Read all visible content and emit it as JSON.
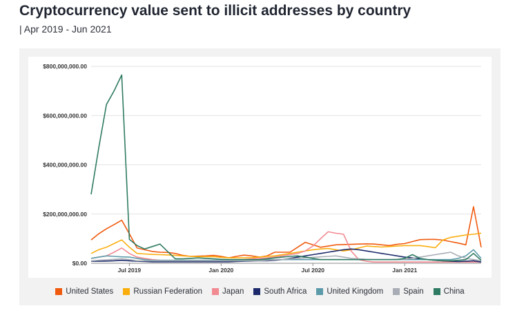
{
  "header": {
    "title": "Cryptocurrency value sent to illicit addresses by country",
    "subtitle": "| Apr 2019 - Jun 2021"
  },
  "chart_data": {
    "type": "line",
    "title": "Cryptocurrency value sent to illicit addresses by country",
    "subtitle": "| Apr 2019 - Jun 2021",
    "xlabel": "",
    "ylabel": "",
    "grid": true,
    "legend_position": "bottom",
    "ylim": [
      0,
      800000000
    ],
    "y_ticks": [
      {
        "value": 0,
        "label": "$0.00"
      },
      {
        "value": 200000000,
        "label": "$200,000,000.00"
      },
      {
        "value": 400000000,
        "label": "$400,000,000.00"
      },
      {
        "value": 600000000,
        "label": "$600,000,000.00"
      },
      {
        "value": 800000000,
        "label": "$800,000,000.00"
      }
    ],
    "x_ticks": [
      {
        "index": 5,
        "label": "Jul 2019"
      },
      {
        "index": 17,
        "label": "Jan 2020"
      },
      {
        "index": 29,
        "label": "Jul 2020"
      },
      {
        "index": 41,
        "label": "Jan 2021"
      }
    ],
    "x_count": 52,
    "series": [
      {
        "name": "United States",
        "color": "#F05A0E",
        "values": [
          95000000,
          120000000,
          140000000,
          157000000,
          175000000,
          120000000,
          62000000,
          55000000,
          48000000,
          45000000,
          44000000,
          40000000,
          32000000,
          28000000,
          29000000,
          30000000,
          32000000,
          28000000,
          22000000,
          28000000,
          33000000,
          30000000,
          25000000,
          30000000,
          45000000,
          45000000,
          45000000,
          65000000,
          85000000,
          75000000,
          65000000,
          70000000,
          75000000,
          76000000,
          77000000,
          78000000,
          79000000,
          78000000,
          75000000,
          72000000,
          77000000,
          80000000,
          88000000,
          96000000,
          97000000,
          97000000,
          94000000,
          88000000,
          82000000,
          75000000,
          230000000,
          65000000
        ]
      },
      {
        "name": "Russian Federation",
        "color": "#F9AE0E",
        "values": [
          40000000,
          55000000,
          65000000,
          80000000,
          95000000,
          65000000,
          40000000,
          38000000,
          36000000,
          35000000,
          34000000,
          32000000,
          30000000,
          28000000,
          27000000,
          27000000,
          27000000,
          24000000,
          22000000,
          22000000,
          22000000,
          23000000,
          25000000,
          28000000,
          30000000,
          35000000,
          40000000,
          45000000,
          50000000,
          55000000,
          58000000,
          60000000,
          55000000,
          50000000,
          55000000,
          62000000,
          70000000,
          68000000,
          66000000,
          68000000,
          70000000,
          72000000,
          72000000,
          72000000,
          68000000,
          63000000,
          95000000,
          105000000,
          110000000,
          115000000,
          118000000,
          122000000
        ]
      },
      {
        "name": "Japan",
        "color": "#F28A92",
        "values": [
          20000000,
          25000000,
          30000000,
          45000000,
          62000000,
          40000000,
          25000000,
          20000000,
          15000000,
          12000000,
          10000000,
          10000000,
          10000000,
          10000000,
          10000000,
          10000000,
          10000000,
          10000000,
          10000000,
          12000000,
          15000000,
          18000000,
          20000000,
          22000000,
          25000000,
          30000000,
          35000000,
          40000000,
          50000000,
          70000000,
          100000000,
          128000000,
          122000000,
          118000000,
          50000000,
          15000000,
          8000000,
          5000000,
          5000000,
          5000000,
          5000000,
          5000000,
          5000000,
          5000000,
          5000000,
          5000000,
          5000000,
          5000000,
          5000000,
          5000000,
          5000000,
          5000000
        ]
      },
      {
        "name": "South Africa",
        "color": "#1C2A6B",
        "values": [
          8000000,
          8000000,
          9000000,
          10000000,
          12000000,
          10000000,
          8000000,
          7000000,
          6000000,
          6000000,
          6000000,
          6000000,
          6000000,
          6000000,
          6000000,
          6000000,
          6000000,
          6000000,
          6000000,
          7000000,
          8000000,
          9000000,
          10000000,
          10000000,
          12000000,
          15000000,
          20000000,
          25000000,
          30000000,
          35000000,
          40000000,
          45000000,
          50000000,
          55000000,
          58000000,
          55000000,
          50000000,
          45000000,
          40000000,
          35000000,
          30000000,
          25000000,
          22000000,
          18000000,
          15000000,
          12000000,
          10000000,
          8000000,
          7000000,
          8000000,
          10000000,
          5000000
        ]
      },
      {
        "name": "United Kingdom",
        "color": "#5B9AA8",
        "values": [
          20000000,
          25000000,
          30000000,
          28000000,
          26000000,
          25000000,
          20000000,
          15000000,
          12000000,
          12000000,
          12000000,
          12000000,
          12000000,
          12000000,
          12000000,
          12000000,
          12000000,
          12000000,
          12000000,
          12000000,
          12000000,
          13000000,
          14000000,
          15000000,
          15000000,
          15000000,
          15000000,
          15000000,
          15000000,
          15000000,
          15000000,
          15000000,
          15000000,
          15000000,
          15000000,
          15000000,
          15000000,
          15000000,
          15000000,
          15000000,
          15000000,
          15000000,
          15000000,
          15000000,
          15000000,
          15000000,
          15000000,
          15000000,
          20000000,
          30000000,
          55000000,
          20000000
        ]
      },
      {
        "name": "Spain",
        "color": "#A8ADB5",
        "values": [
          10000000,
          12000000,
          14000000,
          16000000,
          18000000,
          15000000,
          10000000,
          10000000,
          10000000,
          10000000,
          10000000,
          10000000,
          10000000,
          10000000,
          10000000,
          10000000,
          10000000,
          10000000,
          10000000,
          10000000,
          10000000,
          10000000,
          10000000,
          12000000,
          14000000,
          16000000,
          18000000,
          20000000,
          22000000,
          24000000,
          26000000,
          28000000,
          30000000,
          25000000,
          20000000,
          18000000,
          16000000,
          15000000,
          15000000,
          15000000,
          16000000,
          17000000,
          20000000,
          25000000,
          30000000,
          35000000,
          40000000,
          45000000,
          30000000,
          20000000,
          15000000,
          10000000
        ]
      },
      {
        "name": "China",
        "color": "#2E7A62",
        "values": [
          280000000,
          470000000,
          645000000,
          700000000,
          765000000,
          97000000,
          72000000,
          58000000,
          68000000,
          78000000,
          48000000,
          18000000,
          18000000,
          20000000,
          22000000,
          20000000,
          18000000,
          16000000,
          15000000,
          15000000,
          15000000,
          15000000,
          15000000,
          18000000,
          22000000,
          25000000,
          28000000,
          30000000,
          25000000,
          20000000,
          15000000,
          15000000,
          15000000,
          15000000,
          15000000,
          15000000,
          15000000,
          15000000,
          15000000,
          15000000,
          15000000,
          20000000,
          35000000,
          20000000,
          15000000,
          12000000,
          10000000,
          10000000,
          12000000,
          15000000,
          40000000,
          12000000
        ]
      }
    ]
  }
}
